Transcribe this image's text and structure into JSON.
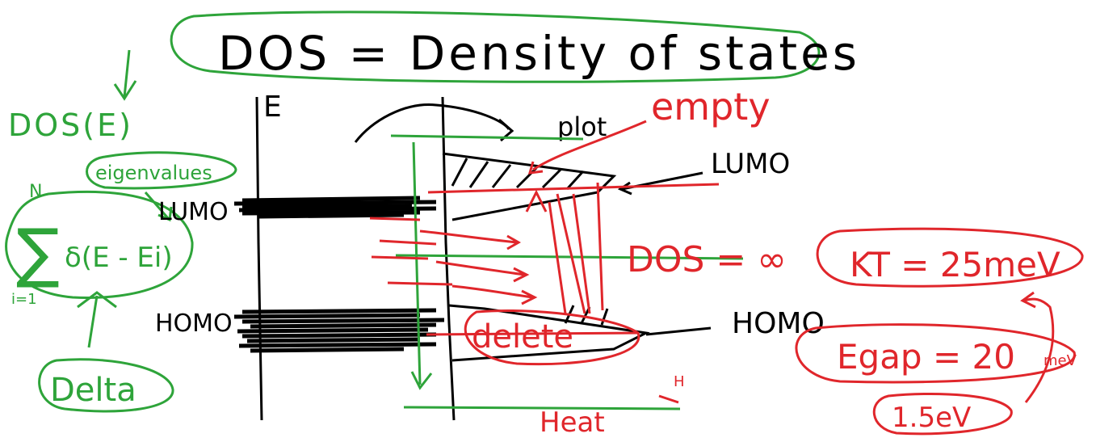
{
  "colors": {
    "black": "#000000",
    "green": "#2ea43a",
    "red": "#e0262b"
  },
  "title": "DOS = Density of states",
  "notes": {
    "dos_e": "DOS(E)",
    "eigenvalues": "eigenvalues",
    "sum_upper": "N",
    "sum_body": "δ(E - Ei)",
    "sum_lower": "i=1",
    "delta": "Delta",
    "axis_e": "E",
    "plot": "plot",
    "empty": "empty",
    "lumo_left": "LUMO",
    "lumo_right": "LUMO",
    "homo_left": "HOMO",
    "homo_right": "HOMO",
    "dos_inf": "DOS = ∞",
    "delete": "delete",
    "heat": "Heat",
    "heat_super": "H",
    "kt": "KT = 25meV",
    "egap": "Egap = 20",
    "egap_unit": "meV",
    "egap_alt": "1.5eV"
  }
}
